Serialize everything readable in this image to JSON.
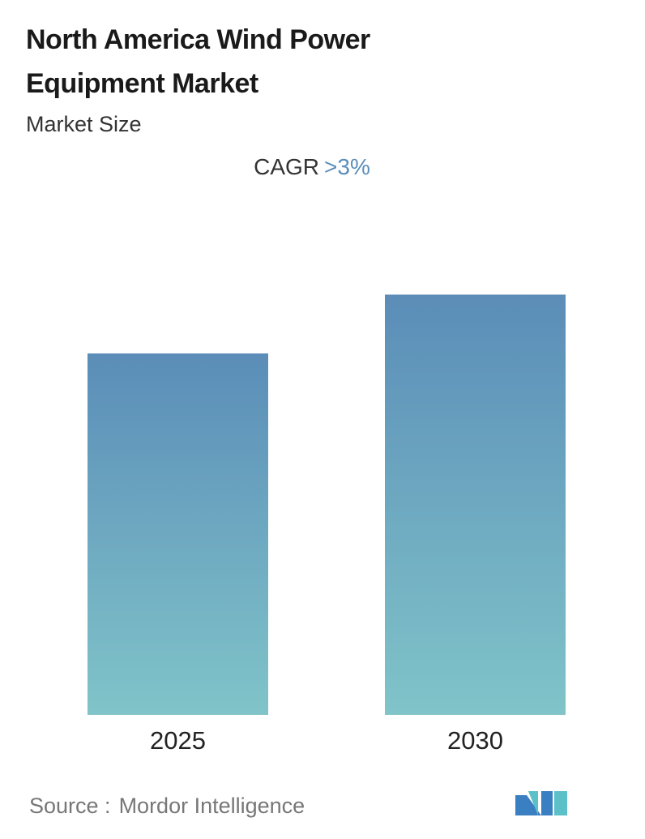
{
  "chart_data": {
    "type": "bar",
    "title": "North America Wind Power Equipment Market",
    "subtitle": "Market Size",
    "cagr_label": "CAGR",
    "cagr_value": ">3%",
    "categories": [
      "2025",
      "2030"
    ],
    "values": [
      86,
      100
    ],
    "ylim": [
      0,
      100
    ],
    "color_top": "#5b8db8",
    "color_bottom": "#80c4c9",
    "source_label": "Source :",
    "source": "Mordor Intelligence"
  }
}
